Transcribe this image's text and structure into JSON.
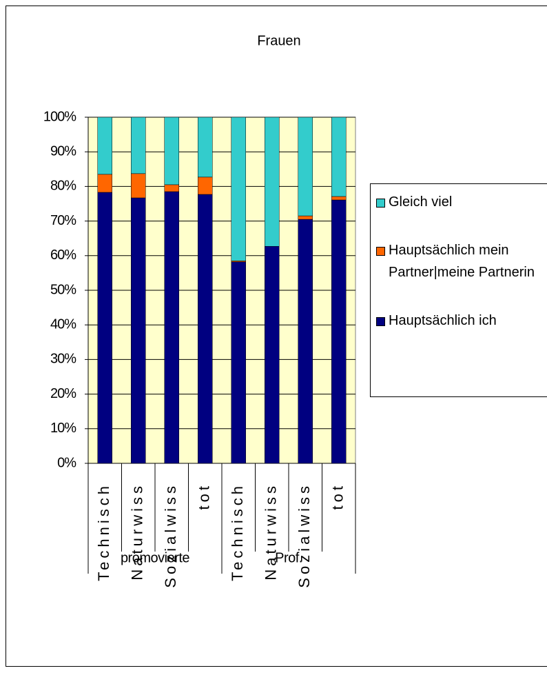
{
  "chart_data": {
    "type": "stacked-bar-100",
    "title": "Frauen",
    "categories": [
      "Technisch",
      "Naturwiss",
      "Sozialwiss",
      "tot",
      "Technisch",
      "Naturwiss",
      "Sozialwiss",
      "tot"
    ],
    "groups": [
      "promovierte",
      "Prof."
    ],
    "series": [
      {
        "name": "Gleich viel",
        "color": "#33cccc",
        "values": [
          16.5,
          16.3,
          19.5,
          17.3,
          41.5,
          37.3,
          28.5,
          22.9
        ]
      },
      {
        "name": "Hauptsächlich mein Partner|meine Partnerin",
        "color": "#ff6600",
        "values": [
          5.2,
          7,
          2,
          5,
          0.3,
          0,
          1,
          1
        ]
      },
      {
        "name": "Hauptsächlich ich",
        "color": "#000080",
        "values": [
          78.3,
          76.7,
          78.5,
          77.7,
          58.2,
          62.7,
          70.5,
          76.1
        ]
      }
    ],
    "ylim": [
      0,
      100
    ],
    "yticks": [
      {
        "value": 0,
        "label": "0%"
      },
      {
        "value": 10,
        "label": "10%"
      },
      {
        "value": 20,
        "label": "20%"
      },
      {
        "value": 30,
        "label": "30%"
      },
      {
        "value": 40,
        "label": "40%"
      },
      {
        "value": 50,
        "label": "50%"
      },
      {
        "value": 60,
        "label": "60%"
      },
      {
        "value": 70,
        "label": "70%"
      },
      {
        "value": 80,
        "label": "80%"
      },
      {
        "value": 90,
        "label": "90%"
      },
      {
        "value": 100,
        "label": "100%"
      }
    ],
    "grid": true,
    "background": "#ffffcc"
  }
}
